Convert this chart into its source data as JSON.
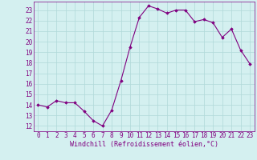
{
  "x": [
    0,
    1,
    2,
    3,
    4,
    5,
    6,
    7,
    8,
    9,
    10,
    11,
    12,
    13,
    14,
    15,
    16,
    17,
    18,
    19,
    20,
    21,
    22,
    23
  ],
  "y": [
    14.0,
    13.8,
    14.4,
    14.2,
    14.2,
    13.4,
    12.5,
    12.0,
    13.5,
    16.3,
    19.5,
    22.3,
    23.4,
    23.1,
    22.7,
    23.0,
    23.0,
    21.9,
    22.1,
    21.8,
    20.4,
    21.2,
    19.2,
    17.9
  ],
  "xlim": [
    -0.5,
    23.5
  ],
  "ylim": [
    11.5,
    23.8
  ],
  "yticks": [
    12,
    13,
    14,
    15,
    16,
    17,
    18,
    19,
    20,
    21,
    22,
    23
  ],
  "xticks": [
    0,
    1,
    2,
    3,
    4,
    5,
    6,
    7,
    8,
    9,
    10,
    11,
    12,
    13,
    14,
    15,
    16,
    17,
    18,
    19,
    20,
    21,
    22,
    23
  ],
  "xlabel": "Windchill (Refroidissement éolien,°C)",
  "line_color": "#800080",
  "marker": "D",
  "marker_size": 1.8,
  "bg_color": "#d4f0f0",
  "grid_color": "#b0d8d8",
  "tick_label_fontsize": 5.5,
  "xlabel_fontsize": 6.0
}
